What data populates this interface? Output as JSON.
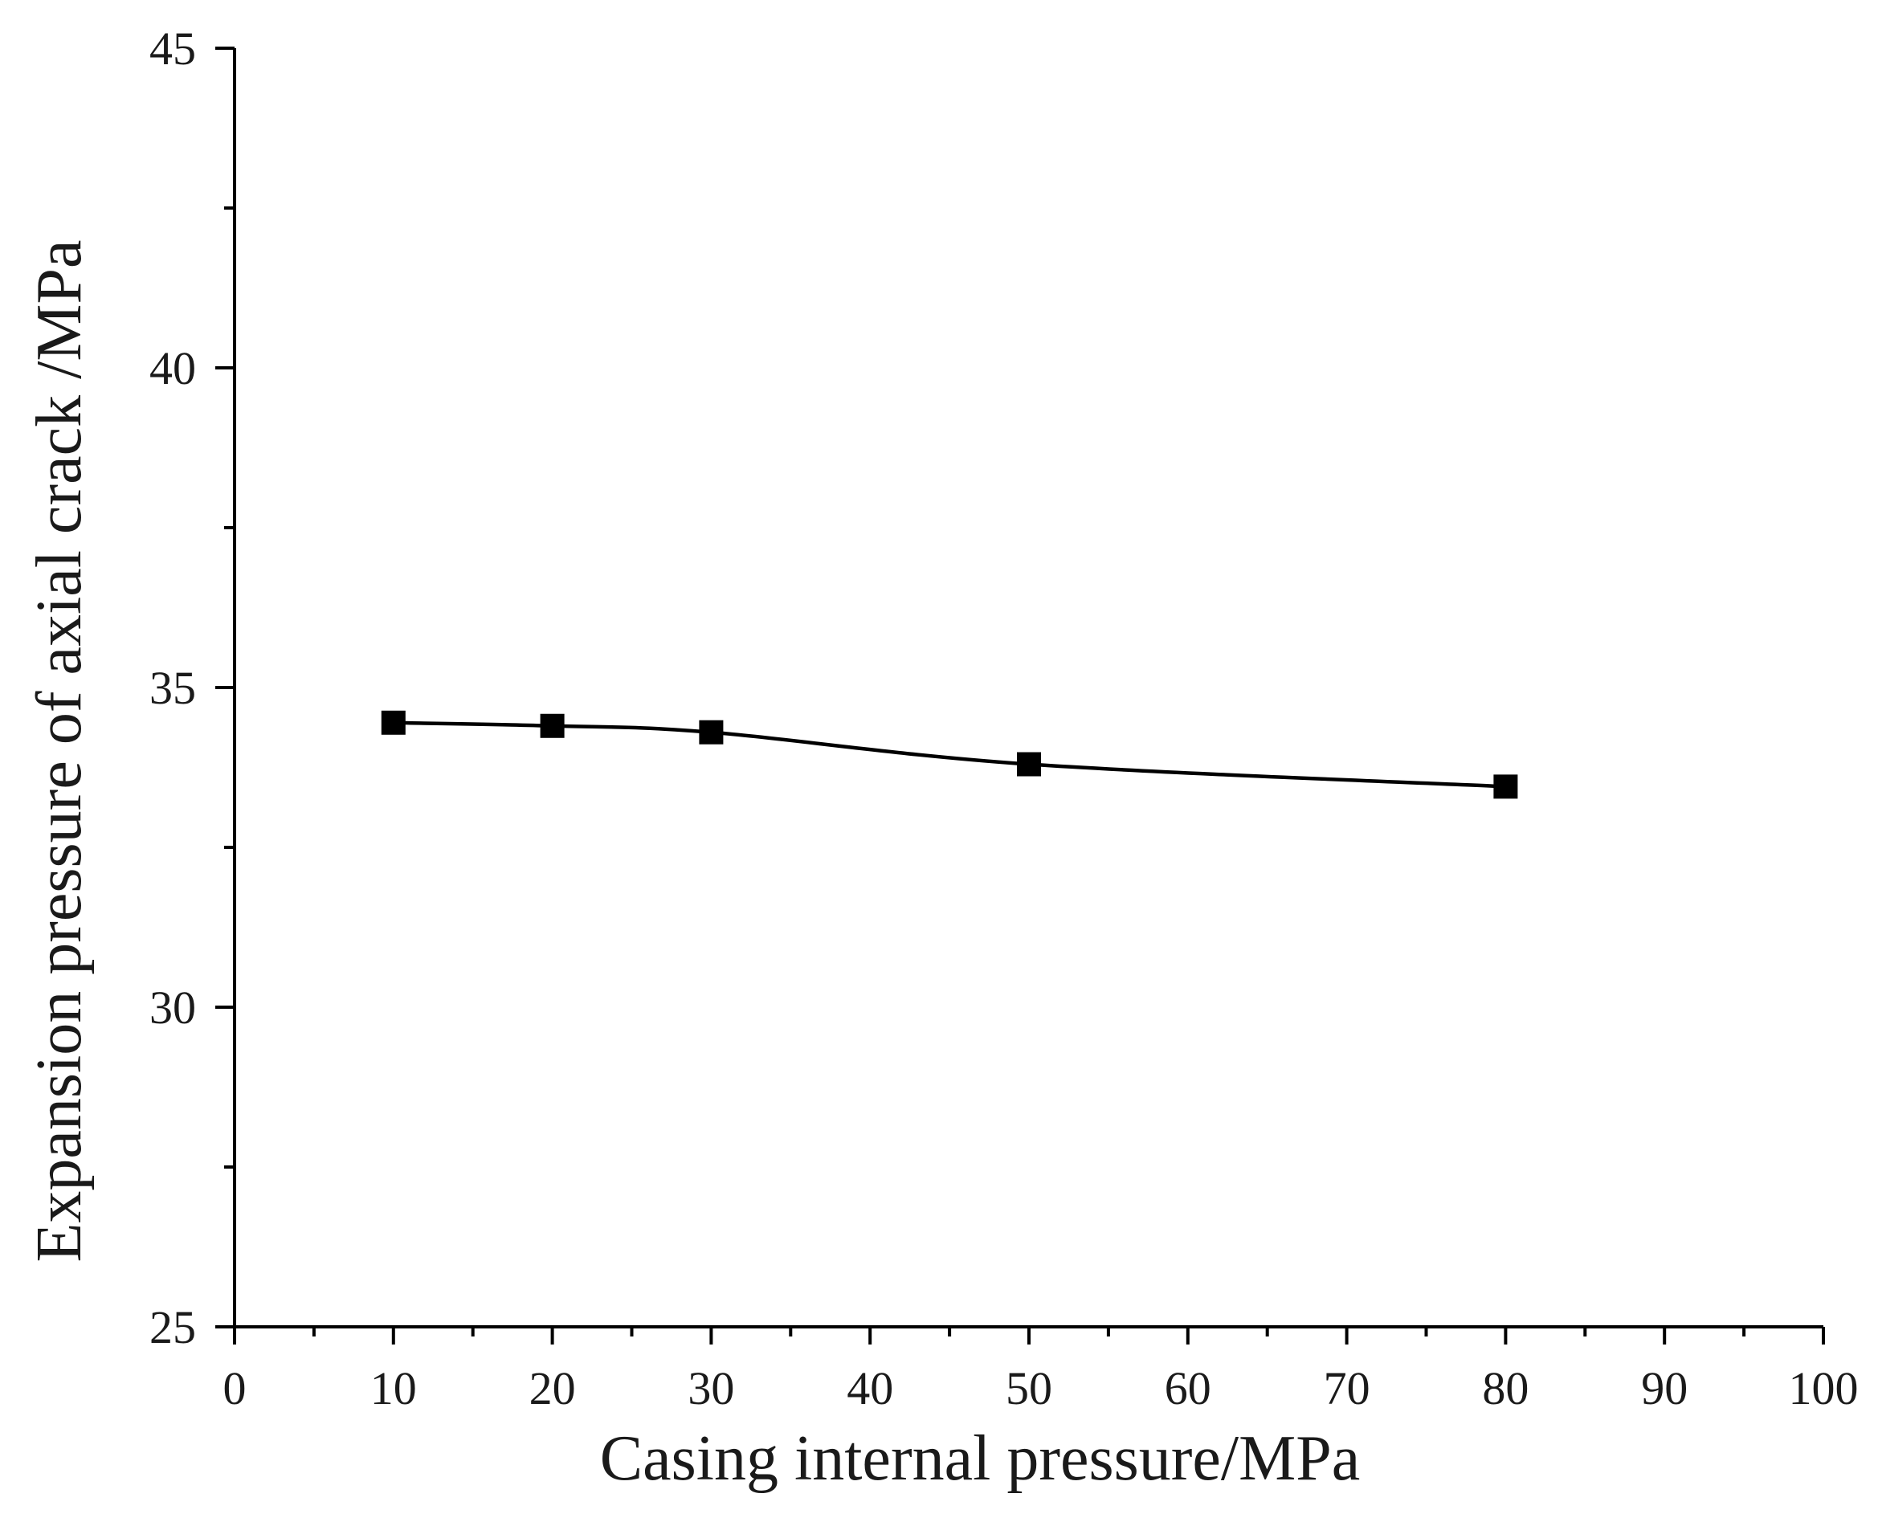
{
  "chart_data": {
    "type": "line",
    "title": "",
    "xlabel": "Casing internal pressure/MPa",
    "ylabel": "Expansion pressure of axial crack /MPa",
    "xlim": [
      0,
      100
    ],
    "ylim": [
      25,
      45
    ],
    "x_major_ticks": [
      0,
      10,
      20,
      30,
      40,
      50,
      60,
      70,
      80,
      90,
      100
    ],
    "x_minor_ticks": [
      5,
      15,
      25,
      35,
      45,
      55,
      65,
      75,
      85,
      95
    ],
    "y_major_ticks": [
      25,
      30,
      35,
      40,
      45
    ],
    "y_minor_ticks": [
      27.5,
      32.5,
      37.5,
      42.5
    ],
    "x_tick_labels": [
      "0",
      "10",
      "20",
      "30",
      "40",
      "50",
      "60",
      "70",
      "80",
      "90",
      "100"
    ],
    "y_tick_labels": [
      "25",
      "30",
      "35",
      "40",
      "45"
    ],
    "grid": false,
    "marker": "square",
    "series": [
      {
        "name": "Expansion pressure",
        "color": "#000000",
        "x": [
          10,
          20,
          30,
          50,
          80
        ],
        "y": [
          34.45,
          34.4,
          34.3,
          33.8,
          33.45
        ]
      }
    ]
  }
}
